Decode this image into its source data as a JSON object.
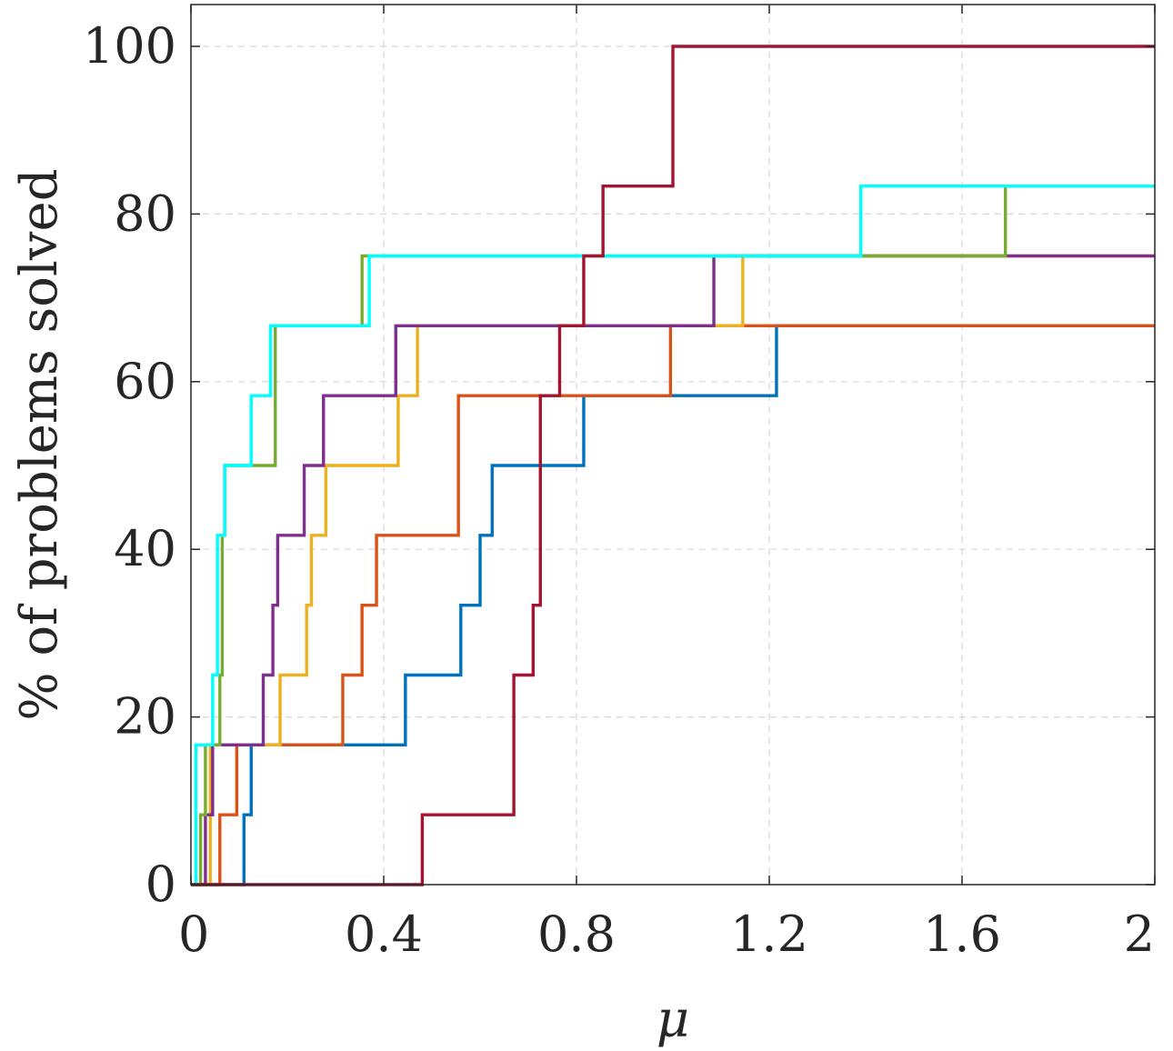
{
  "chart_data": {
    "type": "line",
    "step": true,
    "xlabel": "μ",
    "ylabel": "% of problems solved",
    "xlim": [
      0,
      2
    ],
    "ylim": [
      0,
      100
    ],
    "xticks": [
      0,
      0.4,
      0.8,
      1.2,
      1.6,
      2
    ],
    "xtick_labels": [
      "0",
      "0.4",
      "0.8",
      "1.2",
      "1.6",
      "2"
    ],
    "yticks": [
      0,
      20,
      40,
      60,
      80,
      100
    ],
    "ytick_labels": [
      "0",
      "20",
      "40",
      "60",
      "80",
      "100"
    ],
    "grid": true,
    "series": [
      {
        "color": "#0072BD",
        "points": [
          [
            0,
            0
          ],
          [
            0.11,
            0
          ],
          [
            0.11,
            8.33
          ],
          [
            0.125,
            8.33
          ],
          [
            0.125,
            16.67
          ],
          [
            0.445,
            16.67
          ],
          [
            0.445,
            25
          ],
          [
            0.56,
            25
          ],
          [
            0.56,
            33.33
          ],
          [
            0.6,
            33.33
          ],
          [
            0.6,
            41.67
          ],
          [
            0.625,
            41.67
          ],
          [
            0.625,
            50
          ],
          [
            0.815,
            50
          ],
          [
            0.815,
            58.33
          ],
          [
            1.215,
            58.33
          ],
          [
            1.215,
            66.67
          ],
          [
            2,
            66.67
          ]
        ]
      },
      {
        "color": "#D95319",
        "points": [
          [
            0,
            0
          ],
          [
            0.06,
            0
          ],
          [
            0.06,
            8.33
          ],
          [
            0.095,
            8.33
          ],
          [
            0.095,
            16.67
          ],
          [
            0.315,
            16.67
          ],
          [
            0.315,
            25
          ],
          [
            0.355,
            25
          ],
          [
            0.355,
            33.33
          ],
          [
            0.385,
            33.33
          ],
          [
            0.385,
            41.67
          ],
          [
            0.555,
            41.67
          ],
          [
            0.555,
            58.33
          ],
          [
            0.995,
            58.33
          ],
          [
            0.995,
            66.67
          ],
          [
            2,
            66.67
          ]
        ]
      },
      {
        "color": "#EDB120",
        "points": [
          [
            0,
            0
          ],
          [
            0.04,
            0
          ],
          [
            0.04,
            16.67
          ],
          [
            0.185,
            16.67
          ],
          [
            0.185,
            25
          ],
          [
            0.24,
            25
          ],
          [
            0.24,
            33.33
          ],
          [
            0.25,
            33.33
          ],
          [
            0.25,
            41.67
          ],
          [
            0.28,
            41.67
          ],
          [
            0.28,
            50
          ],
          [
            0.43,
            50
          ],
          [
            0.43,
            58.33
          ],
          [
            0.47,
            58.33
          ],
          [
            0.47,
            66.67
          ],
          [
            1.145,
            66.67
          ],
          [
            1.145,
            75
          ],
          [
            2,
            75
          ]
        ]
      },
      {
        "color": "#7E2F8E",
        "points": [
          [
            0,
            0
          ],
          [
            0.03,
            0
          ],
          [
            0.03,
            8.33
          ],
          [
            0.045,
            8.33
          ],
          [
            0.045,
            16.67
          ],
          [
            0.15,
            16.67
          ],
          [
            0.15,
            25
          ],
          [
            0.17,
            25
          ],
          [
            0.17,
            33.33
          ],
          [
            0.18,
            33.33
          ],
          [
            0.18,
            41.67
          ],
          [
            0.235,
            41.67
          ],
          [
            0.235,
            50
          ],
          [
            0.275,
            50
          ],
          [
            0.275,
            58.33
          ],
          [
            0.425,
            58.33
          ],
          [
            0.425,
            66.67
          ],
          [
            1.085,
            66.67
          ],
          [
            1.085,
            75
          ],
          [
            2,
            75
          ]
        ]
      },
      {
        "color": "#77AC30",
        "points": [
          [
            0,
            0
          ],
          [
            0.02,
            0
          ],
          [
            0.02,
            8.33
          ],
          [
            0.03,
            8.33
          ],
          [
            0.03,
            16.67
          ],
          [
            0.06,
            16.67
          ],
          [
            0.06,
            25
          ],
          [
            0.065,
            25
          ],
          [
            0.065,
            41.67
          ],
          [
            0.07,
            41.67
          ],
          [
            0.07,
            50
          ],
          [
            0.175,
            50
          ],
          [
            0.175,
            66.67
          ],
          [
            0.355,
            66.67
          ],
          [
            0.355,
            75
          ],
          [
            1.69,
            75
          ],
          [
            1.69,
            83.33
          ],
          [
            2,
            83.33
          ]
        ]
      },
      {
        "color": "#00FFFF",
        "points": [
          [
            0,
            0
          ],
          [
            0.01,
            0
          ],
          [
            0.01,
            16.67
          ],
          [
            0.045,
            16.67
          ],
          [
            0.045,
            25
          ],
          [
            0.055,
            25
          ],
          [
            0.055,
            41.67
          ],
          [
            0.07,
            41.67
          ],
          [
            0.07,
            50
          ],
          [
            0.125,
            50
          ],
          [
            0.125,
            58.33
          ],
          [
            0.165,
            58.33
          ],
          [
            0.165,
            66.67
          ],
          [
            0.37,
            66.67
          ],
          [
            0.37,
            75
          ],
          [
            1.39,
            75
          ],
          [
            1.39,
            83.33
          ],
          [
            2,
            83.33
          ]
        ]
      },
      {
        "color": "#A2142F",
        "points": [
          [
            0,
            0
          ],
          [
            0.48,
            0
          ],
          [
            0.48,
            8.33
          ],
          [
            0.67,
            8.33
          ],
          [
            0.67,
            25
          ],
          [
            0.71,
            25
          ],
          [
            0.71,
            33.33
          ],
          [
            0.725,
            33.33
          ],
          [
            0.725,
            58.33
          ],
          [
            0.765,
            58.33
          ],
          [
            0.765,
            66.67
          ],
          [
            0.815,
            66.67
          ],
          [
            0.815,
            75
          ],
          [
            0.855,
            75
          ],
          [
            0.855,
            83.33
          ],
          [
            1.0,
            83.33
          ],
          [
            1.0,
            100
          ],
          [
            2,
            100
          ]
        ]
      }
    ]
  }
}
